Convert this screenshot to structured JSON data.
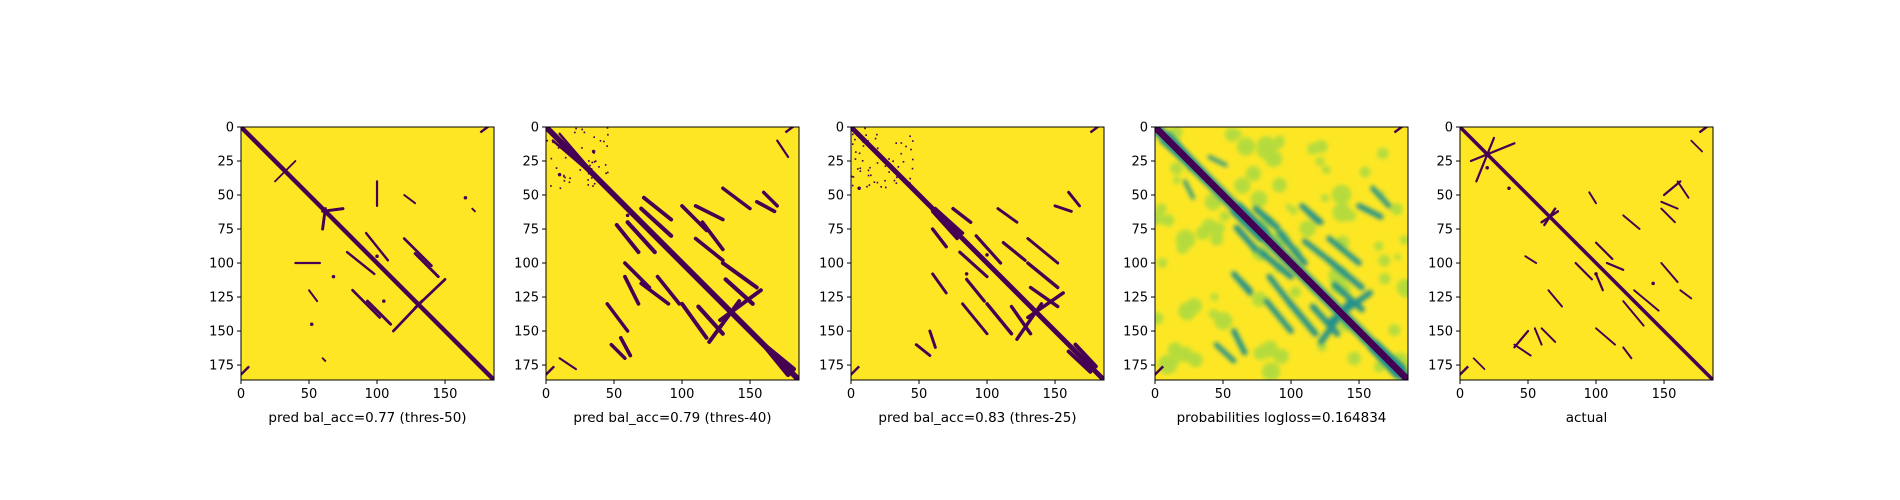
{
  "chart_data": [
    {
      "type": "heatmap",
      "xlabel": "pred bal_acc=0.77 (thres-50)",
      "xticks": [
        0,
        50,
        100,
        150
      ],
      "yticks": [
        0,
        25,
        50,
        75,
        100,
        125,
        150,
        175
      ],
      "xlim": [
        0,
        186
      ],
      "ylim": [
        186,
        0
      ],
      "colormap": "viridis-binary",
      "values_shown": [
        0,
        1
      ],
      "colors": {
        "low": "#440154",
        "high": "#fde725"
      }
    },
    {
      "type": "heatmap",
      "xlabel": "pred bal_acc=0.79 (thres-40)",
      "xticks": [
        0,
        50,
        100,
        150
      ],
      "yticks": [
        0,
        25,
        50,
        75,
        100,
        125,
        150,
        175
      ],
      "xlim": [
        0,
        186
      ],
      "ylim": [
        186,
        0
      ],
      "colormap": "viridis-binary",
      "values_shown": [
        0,
        1
      ],
      "colors": {
        "low": "#440154",
        "high": "#fde725"
      }
    },
    {
      "type": "heatmap",
      "xlabel": "pred bal_acc=0.83 (thres-25)",
      "xticks": [
        0,
        50,
        100,
        150
      ],
      "yticks": [
        0,
        25,
        50,
        75,
        100,
        125,
        150,
        175
      ],
      "xlim": [
        0,
        186
      ],
      "ylim": [
        186,
        0
      ],
      "colormap": "viridis-binary",
      "values_shown": [
        0,
        1
      ],
      "colors": {
        "low": "#440154",
        "high": "#fde725"
      }
    },
    {
      "type": "heatmap",
      "xlabel": "probabilities logloss=0.164834",
      "xticks": [
        0,
        50,
        100,
        150
      ],
      "yticks": [
        0,
        25,
        50,
        75,
        100,
        125,
        150,
        175
      ],
      "xlim": [
        0,
        186
      ],
      "ylim": [
        186,
        0
      ],
      "colormap": "viridis-continuous",
      "colors": {
        "low": "#440154",
        "mid": "#21918c",
        "lowmid": "#7ad151",
        "high": "#fde725"
      }
    },
    {
      "type": "heatmap",
      "xlabel": "actual",
      "xticks": [
        0,
        50,
        100,
        150
      ],
      "yticks": [
        0,
        25,
        50,
        75,
        100,
        125,
        150,
        175
      ],
      "xlim": [
        0,
        186
      ],
      "ylim": [
        186,
        0
      ],
      "colormap": "viridis-binary",
      "values_shown": [
        0,
        1
      ],
      "colors": {
        "low": "#440154",
        "high": "#fde725"
      }
    }
  ]
}
